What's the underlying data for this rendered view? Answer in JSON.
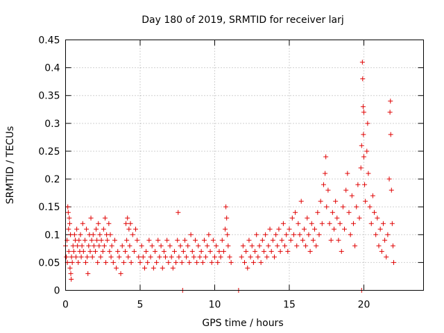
{
  "chart_data": {
    "type": "scatter",
    "title": "Day 180 of 2019, SRMTID for receiver larj",
    "xlabel": "GPS time / hours",
    "ylabel": "SRMTID / TECUs",
    "xlim": [
      0,
      24
    ],
    "ylim": [
      0,
      0.45
    ],
    "xticks": [
      0,
      5,
      10,
      15,
      20
    ],
    "yticks": [
      0,
      0.05,
      0.1,
      0.15,
      0.2,
      0.25,
      0.3,
      0.35,
      0.4,
      0.45
    ],
    "xtick_labels": [
      "0",
      "5",
      "10",
      "15",
      "20"
    ],
    "ytick_labels": [
      "0",
      "0.05",
      "0.1",
      "0.15",
      "0.2",
      "0.25",
      "0.3",
      "0.35",
      "0.4",
      "0.45"
    ],
    "grid": true,
    "marker": "+",
    "color": "#e00000",
    "series": [
      {
        "name": "SRMTID",
        "points": [
          [
            0.0,
            0.08
          ],
          [
            0.05,
            0.06
          ],
          [
            0.1,
            0.09
          ],
          [
            0.12,
            0.05
          ],
          [
            0.15,
            0.15
          ],
          [
            0.18,
            0.14
          ],
          [
            0.2,
            0.11
          ],
          [
            0.22,
            0.07
          ],
          [
            0.25,
            0.13
          ],
          [
            0.28,
            0.12
          ],
          [
            0.3,
            0.04
          ],
          [
            0.33,
            0.1
          ],
          [
            0.35,
            0.03
          ],
          [
            0.38,
            0.02
          ],
          [
            0.4,
            0.06
          ],
          [
            0.45,
            0.05
          ],
          [
            0.5,
            0.08
          ],
          [
            0.55,
            0.07
          ],
          [
            0.6,
            0.1
          ],
          [
            0.65,
            0.09
          ],
          [
            0.7,
            0.06
          ],
          [
            0.75,
            0.11
          ],
          [
            0.8,
            0.08
          ],
          [
            0.85,
            0.05
          ],
          [
            0.9,
            0.09
          ],
          [
            0.95,
            0.07
          ],
          [
            1.0,
            0.1
          ],
          [
            1.05,
            0.06
          ],
          [
            1.1,
            0.08
          ],
          [
            1.15,
            0.12
          ],
          [
            1.2,
            0.07
          ],
          [
            1.3,
            0.09
          ],
          [
            1.35,
            0.05
          ],
          [
            1.4,
            0.11
          ],
          [
            1.45,
            0.06
          ],
          [
            1.5,
            0.03
          ],
          [
            1.55,
            0.08
          ],
          [
            1.6,
            0.1
          ],
          [
            1.65,
            0.07
          ],
          [
            1.7,
            0.13
          ],
          [
            1.75,
            0.09
          ],
          [
            1.8,
            0.06
          ],
          [
            1.85,
            0.1
          ],
          [
            1.9,
            0.08
          ],
          [
            2.0,
            0.07
          ],
          [
            2.05,
            0.11
          ],
          [
            2.1,
            0.09
          ],
          [
            2.15,
            0.05
          ],
          [
            2.2,
            0.12
          ],
          [
            2.25,
            0.08
          ],
          [
            2.3,
            0.1
          ],
          [
            2.35,
            0.06
          ],
          [
            2.4,
            0.09
          ],
          [
            2.5,
            0.07
          ],
          [
            2.55,
            0.11
          ],
          [
            2.6,
            0.08
          ],
          [
            2.65,
            0.13
          ],
          [
            2.7,
            0.05
          ],
          [
            2.75,
            0.1
          ],
          [
            2.8,
            0.09
          ],
          [
            2.9,
            0.12
          ],
          [
            2.95,
            0.07
          ],
          [
            3.0,
            0.1
          ],
          [
            3.05,
            0.06
          ],
          [
            3.1,
            0.08
          ],
          [
            3.2,
            0.05
          ],
          [
            3.3,
            0.09
          ],
          [
            3.4,
            0.04
          ],
          [
            3.5,
            0.07
          ],
          [
            3.6,
            0.06
          ],
          [
            3.7,
            0.03
          ],
          [
            3.8,
            0.08
          ],
          [
            3.9,
            0.05
          ],
          [
            4.0,
            0.07
          ],
          [
            4.05,
            0.12
          ],
          [
            4.1,
            0.09
          ],
          [
            4.15,
            0.13
          ],
          [
            4.2,
            0.06
          ],
          [
            4.25,
            0.11
          ],
          [
            4.3,
            0.08
          ],
          [
            4.35,
            0.12
          ],
          [
            4.4,
            0.05
          ],
          [
            4.5,
            0.1
          ],
          [
            4.6,
            0.07
          ],
          [
            4.7,
            0.11
          ],
          [
            4.8,
            0.09
          ],
          [
            4.9,
            0.06
          ],
          [
            5.0,
            0.05
          ],
          [
            5.1,
            0.08
          ],
          [
            5.2,
            0.06
          ],
          [
            5.3,
            0.04
          ],
          [
            5.4,
            0.07
          ],
          [
            5.5,
            0.05
          ],
          [
            5.6,
            0.09
          ],
          [
            5.7,
            0.06
          ],
          [
            5.8,
            0.08
          ],
          [
            5.9,
            0.04
          ],
          [
            6.0,
            0.07
          ],
          [
            6.1,
            0.05
          ],
          [
            6.2,
            0.09
          ],
          [
            6.3,
            0.06
          ],
          [
            6.4,
            0.08
          ],
          [
            6.5,
            0.04
          ],
          [
            6.6,
            0.07
          ],
          [
            6.7,
            0.06
          ],
          [
            6.8,
            0.09
          ],
          [
            6.9,
            0.05
          ],
          [
            7.0,
            0.08
          ],
          [
            7.1,
            0.06
          ],
          [
            7.2,
            0.04
          ],
          [
            7.3,
            0.07
          ],
          [
            7.4,
            0.05
          ],
          [
            7.5,
            0.09
          ],
          [
            7.55,
            0.14
          ],
          [
            7.6,
            0.06
          ],
          [
            7.7,
            0.08
          ],
          [
            7.8,
            0.05
          ],
          [
            7.85,
            0.0
          ],
          [
            7.9,
            0.07
          ],
          [
            8.0,
            0.09
          ],
          [
            8.1,
            0.06
          ],
          [
            8.2,
            0.08
          ],
          [
            8.3,
            0.05
          ],
          [
            8.4,
            0.1
          ],
          [
            8.5,
            0.07
          ],
          [
            8.6,
            0.06
          ],
          [
            8.7,
            0.09
          ],
          [
            8.8,
            0.05
          ],
          [
            8.9,
            0.08
          ],
          [
            9.0,
            0.06
          ],
          [
            9.1,
            0.07
          ],
          [
            9.2,
            0.05
          ],
          [
            9.3,
            0.09
          ],
          [
            9.4,
            0.06
          ],
          [
            9.5,
            0.08
          ],
          [
            9.6,
            0.1
          ],
          [
            9.7,
            0.07
          ],
          [
            9.8,
            0.05
          ],
          [
            9.9,
            0.09
          ],
          [
            10.0,
            0.06
          ],
          [
            10.1,
            0.08
          ],
          [
            10.2,
            0.05
          ],
          [
            10.3,
            0.07
          ],
          [
            10.4,
            0.06
          ],
          [
            10.5,
            0.09
          ],
          [
            10.6,
            0.07
          ],
          [
            10.7,
            0.11
          ],
          [
            10.75,
            0.15
          ],
          [
            10.8,
            0.13
          ],
          [
            10.85,
            0.1
          ],
          [
            10.9,
            0.08
          ],
          [
            11.0,
            0.06
          ],
          [
            11.1,
            0.05
          ],
          [
            11.6,
            0.0
          ],
          [
            11.8,
            0.06
          ],
          [
            11.9,
            0.08
          ],
          [
            12.0,
            0.05
          ],
          [
            12.1,
            0.07
          ],
          [
            12.2,
            0.04
          ],
          [
            12.3,
            0.09
          ],
          [
            12.4,
            0.06
          ],
          [
            12.5,
            0.08
          ],
          [
            12.6,
            0.05
          ],
          [
            12.7,
            0.07
          ],
          [
            12.8,
            0.1
          ],
          [
            12.9,
            0.06
          ],
          [
            13.0,
            0.08
          ],
          [
            13.1,
            0.05
          ],
          [
            13.2,
            0.09
          ],
          [
            13.3,
            0.07
          ],
          [
            13.4,
            0.1
          ],
          [
            13.5,
            0.06
          ],
          [
            13.6,
            0.08
          ],
          [
            13.7,
            0.11
          ],
          [
            13.8,
            0.07
          ],
          [
            13.9,
            0.09
          ],
          [
            14.0,
            0.06
          ],
          [
            14.1,
            0.1
          ],
          [
            14.2,
            0.08
          ],
          [
            14.3,
            0.11
          ],
          [
            14.4,
            0.07
          ],
          [
            14.5,
            0.09
          ],
          [
            14.6,
            0.12
          ],
          [
            14.7,
            0.08
          ],
          [
            14.8,
            0.1
          ],
          [
            14.9,
            0.07
          ],
          [
            15.0,
            0.11
          ],
          [
            15.1,
            0.09
          ],
          [
            15.2,
            0.13
          ],
          [
            15.3,
            0.1
          ],
          [
            15.4,
            0.14
          ],
          [
            15.5,
            0.08
          ],
          [
            15.6,
            0.12
          ],
          [
            15.7,
            0.1
          ],
          [
            15.8,
            0.16
          ],
          [
            15.9,
            0.09
          ],
          [
            16.0,
            0.11
          ],
          [
            16.1,
            0.08
          ],
          [
            16.2,
            0.13
          ],
          [
            16.3,
            0.1
          ],
          [
            16.4,
            0.07
          ],
          [
            16.5,
            0.12
          ],
          [
            16.6,
            0.09
          ],
          [
            16.7,
            0.11
          ],
          [
            16.8,
            0.08
          ],
          [
            16.9,
            0.14
          ],
          [
            17.0,
            0.1
          ],
          [
            17.1,
            0.16
          ],
          [
            17.2,
            0.12
          ],
          [
            17.3,
            0.19
          ],
          [
            17.4,
            0.21
          ],
          [
            17.45,
            0.24
          ],
          [
            17.5,
            0.15
          ],
          [
            17.6,
            0.18
          ],
          [
            17.7,
            0.12
          ],
          [
            17.8,
            0.09
          ],
          [
            17.9,
            0.14
          ],
          [
            18.0,
            0.11
          ],
          [
            18.1,
            0.16
          ],
          [
            18.2,
            0.13
          ],
          [
            18.3,
            0.09
          ],
          [
            18.4,
            0.12
          ],
          [
            18.5,
            0.07
          ],
          [
            18.6,
            0.15
          ],
          [
            18.7,
            0.11
          ],
          [
            18.8,
            0.18
          ],
          [
            18.9,
            0.21
          ],
          [
            19.0,
            0.14
          ],
          [
            19.1,
            0.1
          ],
          [
            19.2,
            0.17
          ],
          [
            19.3,
            0.12
          ],
          [
            19.4,
            0.08
          ],
          [
            19.5,
            0.15
          ],
          [
            19.6,
            0.19
          ],
          [
            19.7,
            0.13
          ],
          [
            19.8,
            0.22
          ],
          [
            19.85,
            0.26
          ],
          [
            19.9,
            0.41
          ],
          [
            19.92,
            0.38
          ],
          [
            19.95,
            0.33
          ],
          [
            19.97,
            0.28
          ],
          [
            20.0,
            0.24
          ],
          [
            20.05,
            0.19
          ],
          [
            20.1,
            0.16
          ],
          [
            20.2,
            0.25
          ],
          [
            20.25,
            0.3
          ],
          [
            20.3,
            0.21
          ],
          [
            20.4,
            0.15
          ],
          [
            20.5,
            0.12
          ],
          [
            20.6,
            0.17
          ],
          [
            20.7,
            0.14
          ],
          [
            20.8,
            0.1
          ],
          [
            20.9,
            0.13
          ],
          [
            21.0,
            0.08
          ],
          [
            21.1,
            0.11
          ],
          [
            21.2,
            0.07
          ],
          [
            21.3,
            0.12
          ],
          [
            21.4,
            0.09
          ],
          [
            21.5,
            0.06
          ],
          [
            21.6,
            0.1
          ],
          [
            21.7,
            0.2
          ],
          [
            21.75,
            0.32
          ],
          [
            21.78,
            0.34
          ],
          [
            21.8,
            0.28
          ],
          [
            21.85,
            0.18
          ],
          [
            21.9,
            0.12
          ],
          [
            21.95,
            0.08
          ],
          [
            22.0,
            0.05
          ],
          [
            19.85,
            0.0
          ],
          [
            20.0,
            0.32
          ]
        ]
      }
    ]
  }
}
